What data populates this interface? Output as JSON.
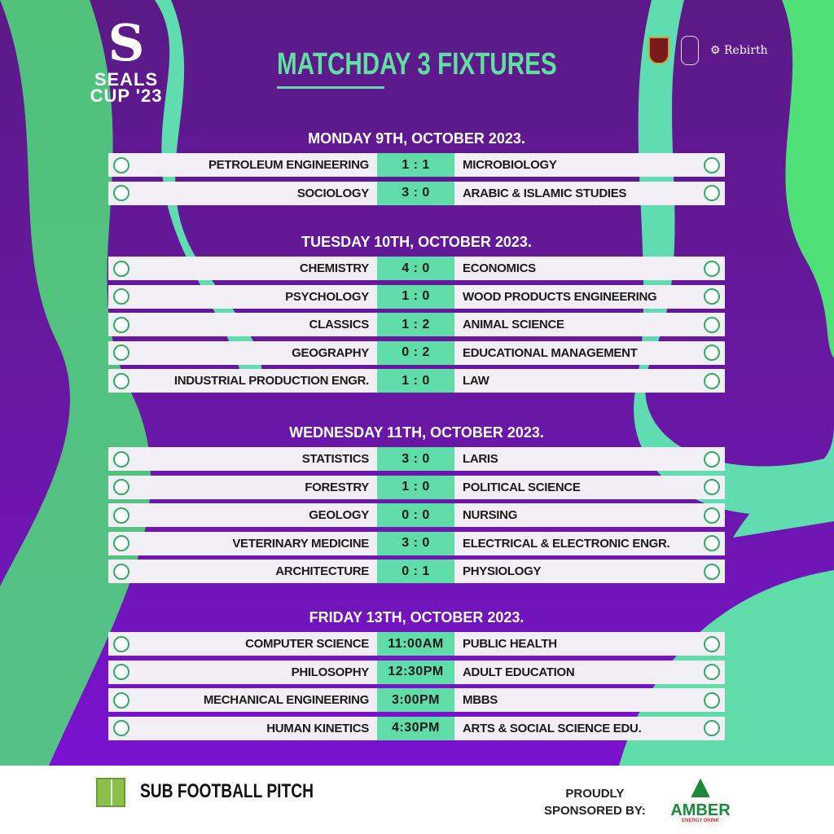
{
  "brand": {
    "logo_letter": "S",
    "logo_line1": "SEALS",
    "logo_line2": "CUP '23"
  },
  "title": "MATCHDAY 3 FIXTURES",
  "partners": {
    "team_label": "Rebirth"
  },
  "colors": {
    "background": "#5b1a86",
    "accent_green": "#5fdca8",
    "row_bg": "#f1eef6"
  },
  "days": [
    {
      "label": "MONDAY 9TH, OCTOBER 2023.",
      "matches": [
        {
          "home": "PETROLEUM ENGINEERING",
          "score": "1 : 1",
          "away": "MICROBIOLOGY"
        },
        {
          "home": "SOCIOLOGY",
          "score": "3 : 0",
          "away": "ARABIC & ISLAMIC STUDIES"
        }
      ]
    },
    {
      "label": "TUESDAY 10TH, OCTOBER 2023.",
      "matches": [
        {
          "home": "CHEMISTRY",
          "score": "4 : 0",
          "away": "ECONOMICS"
        },
        {
          "home": "PSYCHOLOGY",
          "score": "1 : 0",
          "away": "WOOD PRODUCTS ENGINEERING"
        },
        {
          "home": "CLASSICS",
          "score": "1 : 2",
          "away": "ANIMAL SCIENCE"
        },
        {
          "home": "GEOGRAPHY",
          "score": "0 : 2",
          "away": "EDUCATIONAL MANAGEMENT"
        },
        {
          "home": "INDUSTRIAL PRODUCTION ENGR.",
          "score": "1 : 0",
          "away": "LAW"
        }
      ]
    },
    {
      "label": "WEDNESDAY 11TH, OCTOBER 2023.",
      "matches": [
        {
          "home": "STATISTICS",
          "score": "3 : 0",
          "away": "LARIS"
        },
        {
          "home": "FORESTRY",
          "score": "1 : 0",
          "away": "POLITICAL SCIENCE"
        },
        {
          "home": "GEOLOGY",
          "score": "0 : 0",
          "away": "NURSING"
        },
        {
          "home": "VETERINARY MEDICINE",
          "score": "3 : 0",
          "away": "ELECTRICAL & ELECTRONIC ENGR."
        },
        {
          "home": "ARCHITECTURE",
          "score": "0 : 1",
          "away": "PHYSIOLOGY"
        }
      ]
    },
    {
      "label": "FRIDAY 13TH, OCTOBER 2023.",
      "matches": [
        {
          "home": "COMPUTER SCIENCE",
          "score": "11:00AM",
          "away": "PUBLIC HEALTH"
        },
        {
          "home": "PHILOSOPHY",
          "score": "12:30PM",
          "away": "ADULT EDUCATION"
        },
        {
          "home": "MECHANICAL ENGINEERING",
          "score": "3:00PM",
          "away": "MBBS"
        },
        {
          "home": "HUMAN KINETICS",
          "score": "4:30PM",
          "away": "ARTS & SOCIAL SCIENCE EDU."
        }
      ]
    }
  ],
  "footer": {
    "venue": "SUB FOOTBALL PITCH",
    "sponsor_line1": "PROUDLY",
    "sponsor_line2": "SPONSORED BY:",
    "sponsor_name": "AMBER",
    "sponsor_tagline": "ENERGY DRINK"
  }
}
